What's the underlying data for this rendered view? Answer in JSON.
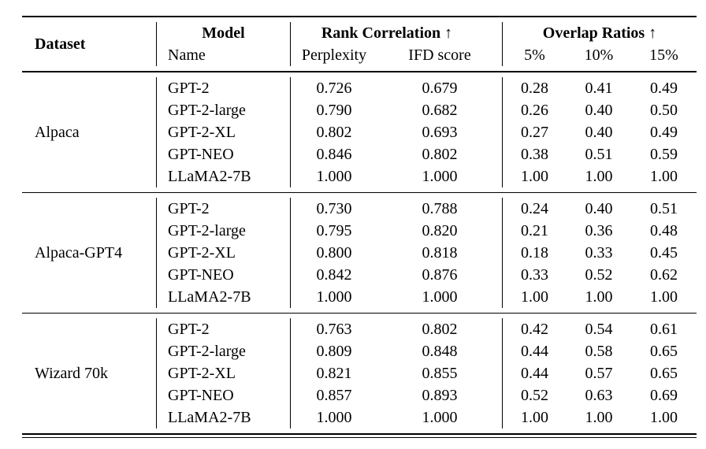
{
  "page": {
    "background_color": "#ffffff",
    "text_color": "#000000",
    "rule_color": "#000000"
  },
  "table": {
    "header": {
      "dataset": "Dataset",
      "model_group": "Model",
      "model_sub": "Name",
      "rank_group": "Rank Correlation ↑",
      "rank_subs": [
        "Perplexity",
        "IFD score"
      ],
      "overlap_group": "Overlap Ratios ↑",
      "overlap_subs": [
        "5%",
        "10%",
        "15%"
      ]
    },
    "groups": [
      {
        "dataset": "Alpaca",
        "rows": [
          {
            "model": "GPT-2",
            "perplexity": "0.726",
            "ifd": "0.679",
            "o5": "0.28",
            "o10": "0.41",
            "o15": "0.49"
          },
          {
            "model": "GPT-2-large",
            "perplexity": "0.790",
            "ifd": "0.682",
            "o5": "0.26",
            "o10": "0.40",
            "o15": "0.50"
          },
          {
            "model": "GPT-2-XL",
            "perplexity": "0.802",
            "ifd": "0.693",
            "o5": "0.27",
            "o10": "0.40",
            "o15": "0.49"
          },
          {
            "model": "GPT-NEO",
            "perplexity": "0.846",
            "ifd": "0.802",
            "o5": "0.38",
            "o10": "0.51",
            "o15": "0.59"
          },
          {
            "model": "LLaMA2-7B",
            "perplexity": "1.000",
            "ifd": "1.000",
            "o5": "1.00",
            "o10": "1.00",
            "o15": "1.00"
          }
        ]
      },
      {
        "dataset": "Alpaca-GPT4",
        "rows": [
          {
            "model": "GPT-2",
            "perplexity": "0.730",
            "ifd": "0.788",
            "o5": "0.24",
            "o10": "0.40",
            "o15": "0.51"
          },
          {
            "model": "GPT-2-large",
            "perplexity": "0.795",
            "ifd": "0.820",
            "o5": "0.21",
            "o10": "0.36",
            "o15": "0.48"
          },
          {
            "model": "GPT-2-XL",
            "perplexity": "0.800",
            "ifd": "0.818",
            "o5": "0.18",
            "o10": "0.33",
            "o15": "0.45"
          },
          {
            "model": "GPT-NEO",
            "perplexity": "0.842",
            "ifd": "0.876",
            "o5": "0.33",
            "o10": "0.52",
            "o15": "0.62"
          },
          {
            "model": "LLaMA2-7B",
            "perplexity": "1.000",
            "ifd": "1.000",
            "o5": "1.00",
            "o10": "1.00",
            "o15": "1.00"
          }
        ]
      },
      {
        "dataset": "Wizard 70k",
        "rows": [
          {
            "model": "GPT-2",
            "perplexity": "0.763",
            "ifd": "0.802",
            "o5": "0.42",
            "o10": "0.54",
            "o15": "0.61"
          },
          {
            "model": "GPT-2-large",
            "perplexity": "0.809",
            "ifd": "0.848",
            "o5": "0.44",
            "o10": "0.58",
            "o15": "0.65"
          },
          {
            "model": "GPT-2-XL",
            "perplexity": "0.821",
            "ifd": "0.855",
            "o5": "0.44",
            "o10": "0.57",
            "o15": "0.65"
          },
          {
            "model": "GPT-NEO",
            "perplexity": "0.857",
            "ifd": "0.893",
            "o5": "0.52",
            "o10": "0.63",
            "o15": "0.69"
          },
          {
            "model": "LLaMA2-7B",
            "perplexity": "1.000",
            "ifd": "1.000",
            "o5": "1.00",
            "o10": "1.00",
            "o15": "1.00"
          }
        ]
      }
    ]
  }
}
